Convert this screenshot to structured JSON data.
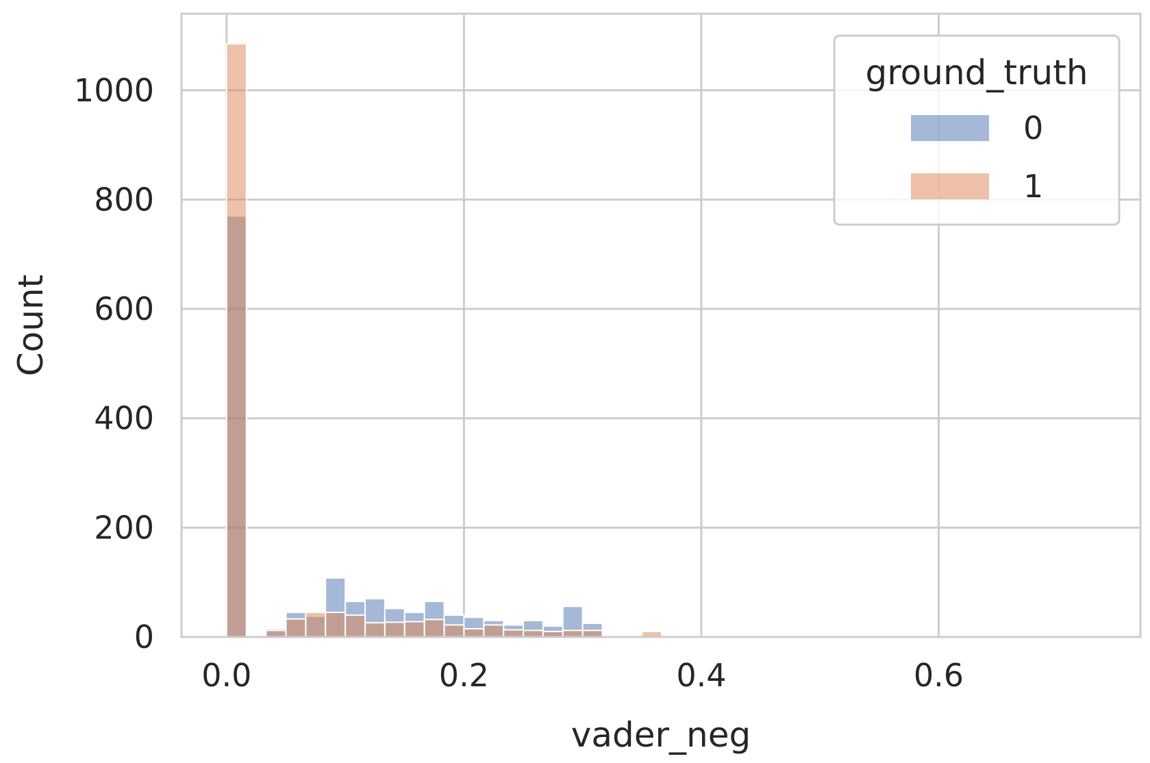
{
  "chart_data": {
    "type": "histogram",
    "xlabel": "vader_neg",
    "ylabel": "Count",
    "xlim": [
      -0.038,
      0.77
    ],
    "ylim": [
      0,
      1140
    ],
    "x_ticks": [
      "0.0",
      "0.2",
      "0.4",
      "0.6"
    ],
    "x_tick_values": [
      0.0,
      0.2,
      0.4,
      0.6
    ],
    "y_ticks": [
      "0",
      "200",
      "400",
      "600",
      "800",
      "1000"
    ],
    "y_tick_values": [
      0,
      200,
      400,
      600,
      800,
      1000
    ],
    "grid": true,
    "legend": {
      "title": "ground_truth",
      "placement": "top-right",
      "entries": [
        "0",
        "1"
      ]
    },
    "bin_width": 0.0167,
    "bin_starts": [
      0.0,
      0.0167,
      0.0333,
      0.05,
      0.0667,
      0.0833,
      0.1,
      0.1167,
      0.1333,
      0.15,
      0.1667,
      0.1833,
      0.2,
      0.2167,
      0.2333,
      0.25,
      0.2667,
      0.2833,
      0.3,
      0.3167,
      0.3333,
      0.35,
      0.3667,
      0.3833,
      0.4,
      0.4167,
      0.4333,
      0.45
    ],
    "series": [
      {
        "name": "0",
        "color": "#4c72b0",
        "values": [
          770,
          4,
          15,
          45,
          38,
          108,
          65,
          70,
          52,
          45,
          65,
          40,
          36,
          30,
          22,
          30,
          20,
          56,
          25,
          2,
          4,
          2,
          1,
          1,
          1,
          1,
          3,
          3
        ]
      },
      {
        "name": "1",
        "color": "#dd8452",
        "values": [
          1085,
          3,
          12,
          33,
          45,
          45,
          40,
          26,
          27,
          28,
          32,
          22,
          15,
          22,
          13,
          12,
          10,
          12,
          12,
          2,
          2,
          10,
          1,
          1,
          1,
          0,
          1,
          1
        ]
      }
    ]
  }
}
